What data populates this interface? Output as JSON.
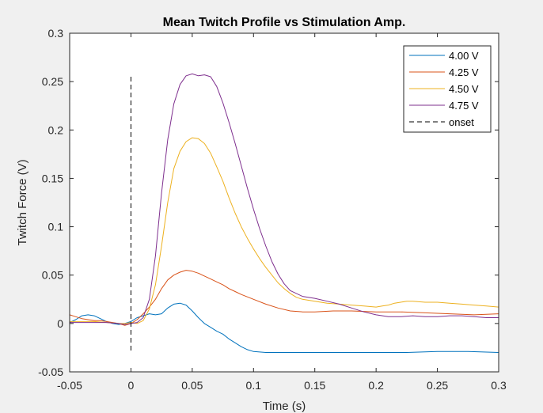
{
  "chart_data": {
    "type": "line",
    "title": "Mean Twitch Profile vs Stimulation Amp.",
    "xlabel": "Time (s)",
    "ylabel": "Twitch Force (V)",
    "xlim": [
      -0.05,
      0.3
    ],
    "ylim": [
      -0.05,
      0.3
    ],
    "xticks": [
      -0.05,
      0,
      0.05,
      0.1,
      0.15,
      0.2,
      0.25,
      0.3
    ],
    "xtick_labels": [
      "-0.05",
      "0",
      "0.05",
      "0.1",
      "0.15",
      "0.2",
      "0.25",
      "0.3"
    ],
    "yticks": [
      -0.05,
      0,
      0.05,
      0.1,
      0.15,
      0.2,
      0.25,
      0.3
    ],
    "ytick_labels": [
      "-0.05",
      "0",
      "0.05",
      "0.1",
      "0.15",
      "0.2",
      "0.25",
      "0.3"
    ],
    "grid": false,
    "legend_position": "top-right",
    "series": [
      {
        "name": "4.00 V",
        "color": "#0072BD",
        "points": [
          [
            -0.05,
            0.001
          ],
          [
            -0.045,
            0.004
          ],
          [
            -0.04,
            0.008
          ],
          [
            -0.035,
            0.009
          ],
          [
            -0.03,
            0.008
          ],
          [
            -0.025,
            0.005
          ],
          [
            -0.02,
            0.002
          ],
          [
            -0.015,
            0.0
          ],
          [
            -0.01,
            -0.001
          ],
          [
            -0.005,
            0.0
          ],
          [
            0,
            0.002
          ],
          [
            0.005,
            0.006
          ],
          [
            0.01,
            0.008
          ],
          [
            0.015,
            0.01
          ],
          [
            0.02,
            0.009
          ],
          [
            0.025,
            0.01
          ],
          [
            0.03,
            0.016
          ],
          [
            0.035,
            0.02
          ],
          [
            0.04,
            0.021
          ],
          [
            0.045,
            0.019
          ],
          [
            0.05,
            0.013
          ],
          [
            0.055,
            0.006
          ],
          [
            0.06,
            0.0
          ],
          [
            0.065,
            -0.004
          ],
          [
            0.07,
            -0.008
          ],
          [
            0.075,
            -0.011
          ],
          [
            0.08,
            -0.016
          ],
          [
            0.085,
            -0.02
          ],
          [
            0.09,
            -0.024
          ],
          [
            0.095,
            -0.027
          ],
          [
            0.1,
            -0.029
          ],
          [
            0.11,
            -0.03
          ],
          [
            0.13,
            -0.03
          ],
          [
            0.15,
            -0.03
          ],
          [
            0.175,
            -0.03
          ],
          [
            0.2,
            -0.03
          ],
          [
            0.225,
            -0.03
          ],
          [
            0.25,
            -0.029
          ],
          [
            0.275,
            -0.029
          ],
          [
            0.3,
            -0.03
          ]
        ]
      },
      {
        "name": "4.25 V",
        "color": "#D95319",
        "points": [
          [
            -0.05,
            0.009
          ],
          [
            -0.045,
            0.007
          ],
          [
            -0.04,
            0.005
          ],
          [
            -0.035,
            0.004
          ],
          [
            -0.03,
            0.003
          ],
          [
            -0.025,
            0.003
          ],
          [
            -0.02,
            0.002
          ],
          [
            -0.015,
            0.001
          ],
          [
            -0.01,
            0.0
          ],
          [
            -0.005,
            -0.002
          ],
          [
            0,
            0.0
          ],
          [
            0.005,
            0.004
          ],
          [
            0.01,
            0.01
          ],
          [
            0.015,
            0.017
          ],
          [
            0.02,
            0.025
          ],
          [
            0.025,
            0.036
          ],
          [
            0.03,
            0.045
          ],
          [
            0.035,
            0.05
          ],
          [
            0.04,
            0.053
          ],
          [
            0.045,
            0.055
          ],
          [
            0.05,
            0.054
          ],
          [
            0.055,
            0.052
          ],
          [
            0.06,
            0.049
          ],
          [
            0.065,
            0.046
          ],
          [
            0.07,
            0.043
          ],
          [
            0.075,
            0.04
          ],
          [
            0.08,
            0.036
          ],
          [
            0.085,
            0.033
          ],
          [
            0.09,
            0.03
          ],
          [
            0.1,
            0.025
          ],
          [
            0.11,
            0.02
          ],
          [
            0.12,
            0.016
          ],
          [
            0.13,
            0.013
          ],
          [
            0.14,
            0.012
          ],
          [
            0.15,
            0.012
          ],
          [
            0.165,
            0.013
          ],
          [
            0.18,
            0.013
          ],
          [
            0.2,
            0.012
          ],
          [
            0.22,
            0.012
          ],
          [
            0.24,
            0.011
          ],
          [
            0.26,
            0.01
          ],
          [
            0.28,
            0.009
          ],
          [
            0.3,
            0.01
          ]
        ]
      },
      {
        "name": "4.50 V",
        "color": "#EDB120",
        "points": [
          [
            -0.05,
            0.002
          ],
          [
            -0.04,
            0.002
          ],
          [
            -0.03,
            0.002
          ],
          [
            -0.02,
            0.001
          ],
          [
            -0.01,
            0.0
          ],
          [
            -0.005,
            0.0
          ],
          [
            0,
            0.001
          ],
          [
            0.005,
            0.0
          ],
          [
            0.01,
            0.003
          ],
          [
            0.015,
            0.015
          ],
          [
            0.02,
            0.04
          ],
          [
            0.025,
            0.08
          ],
          [
            0.03,
            0.125
          ],
          [
            0.035,
            0.16
          ],
          [
            0.04,
            0.178
          ],
          [
            0.045,
            0.188
          ],
          [
            0.05,
            0.192
          ],
          [
            0.055,
            0.191
          ],
          [
            0.06,
            0.186
          ],
          [
            0.065,
            0.176
          ],
          [
            0.07,
            0.162
          ],
          [
            0.075,
            0.147
          ],
          [
            0.08,
            0.13
          ],
          [
            0.085,
            0.114
          ],
          [
            0.09,
            0.1
          ],
          [
            0.095,
            0.088
          ],
          [
            0.1,
            0.077
          ],
          [
            0.105,
            0.067
          ],
          [
            0.11,
            0.058
          ],
          [
            0.115,
            0.05
          ],
          [
            0.12,
            0.042
          ],
          [
            0.125,
            0.036
          ],
          [
            0.13,
            0.031
          ],
          [
            0.135,
            0.027
          ],
          [
            0.14,
            0.025
          ],
          [
            0.15,
            0.023
          ],
          [
            0.16,
            0.021
          ],
          [
            0.17,
            0.02
          ],
          [
            0.18,
            0.019
          ],
          [
            0.19,
            0.018
          ],
          [
            0.2,
            0.017
          ],
          [
            0.205,
            0.018
          ],
          [
            0.21,
            0.019
          ],
          [
            0.215,
            0.021
          ],
          [
            0.22,
            0.022
          ],
          [
            0.225,
            0.023
          ],
          [
            0.23,
            0.023
          ],
          [
            0.24,
            0.022
          ],
          [
            0.25,
            0.022
          ],
          [
            0.26,
            0.021
          ],
          [
            0.27,
            0.02
          ],
          [
            0.28,
            0.019
          ],
          [
            0.29,
            0.018
          ],
          [
            0.3,
            0.017
          ]
        ]
      },
      {
        "name": "4.75 V",
        "color": "#7E2F8E",
        "points": [
          [
            -0.05,
            0.001
          ],
          [
            -0.04,
            0.001
          ],
          [
            -0.03,
            0.001
          ],
          [
            -0.02,
            0.001
          ],
          [
            -0.01,
            0.0
          ],
          [
            -0.005,
            -0.001
          ],
          [
            0,
            0.0
          ],
          [
            0.005,
            0.001
          ],
          [
            0.01,
            0.006
          ],
          [
            0.015,
            0.025
          ],
          [
            0.02,
            0.07
          ],
          [
            0.025,
            0.135
          ],
          [
            0.03,
            0.19
          ],
          [
            0.035,
            0.227
          ],
          [
            0.04,
            0.247
          ],
          [
            0.045,
            0.256
          ],
          [
            0.05,
            0.258
          ],
          [
            0.055,
            0.256
          ],
          [
            0.06,
            0.257
          ],
          [
            0.065,
            0.255
          ],
          [
            0.07,
            0.245
          ],
          [
            0.075,
            0.228
          ],
          [
            0.08,
            0.208
          ],
          [
            0.085,
            0.186
          ],
          [
            0.09,
            0.163
          ],
          [
            0.095,
            0.14
          ],
          [
            0.1,
            0.118
          ],
          [
            0.105,
            0.098
          ],
          [
            0.11,
            0.08
          ],
          [
            0.115,
            0.064
          ],
          [
            0.12,
            0.051
          ],
          [
            0.125,
            0.041
          ],
          [
            0.13,
            0.034
          ],
          [
            0.14,
            0.028
          ],
          [
            0.15,
            0.026
          ],
          [
            0.16,
            0.023
          ],
          [
            0.17,
            0.02
          ],
          [
            0.18,
            0.016
          ],
          [
            0.19,
            0.012
          ],
          [
            0.2,
            0.009
          ],
          [
            0.21,
            0.007
          ],
          [
            0.22,
            0.007
          ],
          [
            0.23,
            0.008
          ],
          [
            0.24,
            0.007
          ],
          [
            0.25,
            0.007
          ],
          [
            0.26,
            0.008
          ],
          [
            0.27,
            0.008
          ],
          [
            0.28,
            0.007
          ],
          [
            0.29,
            0.006
          ],
          [
            0.3,
            0.006
          ]
        ]
      }
    ],
    "onset": {
      "name": "onset",
      "x": 0,
      "y_range": [
        -0.03,
        0.255
      ],
      "color": "#000000",
      "style": "dashed"
    }
  }
}
